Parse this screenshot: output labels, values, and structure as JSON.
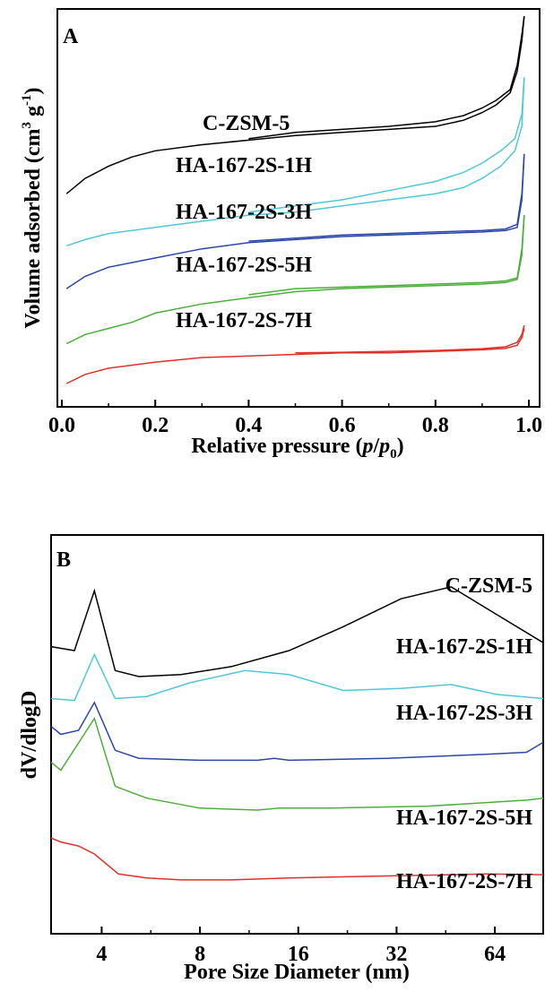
{
  "chart_data": [
    {
      "type": "line",
      "panel_label": "A",
      "xlabel": "Relative pressure (p/p0)",
      "ylabel": "Volume adsorbed (cm3 g-1)",
      "xlim": [
        0,
        1.0
      ],
      "x_ticks": [
        "0.0",
        "0.2",
        "0.4",
        "0.6",
        "0.8",
        "1.0"
      ],
      "y_tick_labels_shown": false,
      "series": [
        {
          "name": "C-ZSM-5",
          "color": "#000000",
          "adsorption": [
            [
              0.01,
              0.62
            ],
            [
              0.05,
              0.67
            ],
            [
              0.1,
              0.71
            ],
            [
              0.15,
              0.74
            ],
            [
              0.2,
              0.76
            ],
            [
              0.3,
              0.78
            ],
            [
              0.4,
              0.795
            ],
            [
              0.5,
              0.81
            ],
            [
              0.6,
              0.82
            ],
            [
              0.7,
              0.83
            ],
            [
              0.8,
              0.84
            ],
            [
              0.86,
              0.86
            ],
            [
              0.9,
              0.885
            ],
            [
              0.93,
              0.91
            ],
            [
              0.96,
              0.95
            ],
            [
              0.975,
              1.02
            ],
            [
              0.985,
              1.12
            ],
            [
              0.99,
              1.2
            ]
          ],
          "desorption": [
            [
              0.4,
              0.8
            ],
            [
              0.5,
              0.82
            ],
            [
              0.6,
              0.83
            ],
            [
              0.7,
              0.84
            ],
            [
              0.8,
              0.855
            ],
            [
              0.86,
              0.875
            ],
            [
              0.9,
              0.9
            ],
            [
              0.93,
              0.925
            ],
            [
              0.96,
              0.96
            ],
            [
              0.975,
              1.04
            ],
            [
              0.985,
              1.14
            ],
            [
              0.99,
              1.2
            ]
          ]
        },
        {
          "name": "HA-167-2S-1H",
          "color": "#4ec8d8",
          "adsorption": [
            [
              0.01,
              0.45
            ],
            [
              0.05,
              0.47
            ],
            [
              0.1,
              0.49
            ],
            [
              0.2,
              0.51
            ],
            [
              0.3,
              0.53
            ],
            [
              0.4,
              0.55
            ],
            [
              0.5,
              0.56
            ],
            [
              0.6,
              0.58
            ],
            [
              0.7,
              0.6
            ],
            [
              0.8,
              0.62
            ],
            [
              0.86,
              0.64
            ],
            [
              0.9,
              0.67
            ],
            [
              0.94,
              0.71
            ],
            [
              0.97,
              0.76
            ],
            [
              0.985,
              0.84
            ],
            [
              0.99,
              1.0
            ]
          ],
          "desorption": [
            [
              0.4,
              0.56
            ],
            [
              0.5,
              0.58
            ],
            [
              0.6,
              0.6
            ],
            [
              0.7,
              0.63
            ],
            [
              0.8,
              0.66
            ],
            [
              0.86,
              0.69
            ],
            [
              0.9,
              0.72
            ],
            [
              0.94,
              0.76
            ],
            [
              0.97,
              0.8
            ],
            [
              0.985,
              0.88
            ],
            [
              0.99,
              1.0
            ]
          ]
        },
        {
          "name": "HA-167-2S-3H",
          "color": "#2a47a8",
          "adsorption": [
            [
              0.01,
              0.31
            ],
            [
              0.05,
              0.35
            ],
            [
              0.1,
              0.38
            ],
            [
              0.2,
              0.41
            ],
            [
              0.3,
              0.44
            ],
            [
              0.4,
              0.46
            ],
            [
              0.5,
              0.47
            ],
            [
              0.6,
              0.48
            ],
            [
              0.7,
              0.485
            ],
            [
              0.8,
              0.49
            ],
            [
              0.9,
              0.495
            ],
            [
              0.95,
              0.5
            ],
            [
              0.975,
              0.51
            ],
            [
              0.985,
              0.6
            ],
            [
              0.99,
              0.75
            ]
          ],
          "desorption": [
            [
              0.4,
              0.465
            ],
            [
              0.5,
              0.475
            ],
            [
              0.6,
              0.485
            ],
            [
              0.7,
              0.49
            ],
            [
              0.8,
              0.495
            ],
            [
              0.9,
              0.5
            ],
            [
              0.95,
              0.505
            ],
            [
              0.975,
              0.52
            ],
            [
              0.985,
              0.62
            ],
            [
              0.99,
              0.75
            ]
          ]
        },
        {
          "name": "HA-167-2S-5H",
          "color": "#4caf3a",
          "adsorption": [
            [
              0.01,
              0.13
            ],
            [
              0.05,
              0.16
            ],
            [
              0.1,
              0.18
            ],
            [
              0.15,
              0.2
            ],
            [
              0.2,
              0.23
            ],
            [
              0.3,
              0.26
            ],
            [
              0.4,
              0.28
            ],
            [
              0.5,
              0.3
            ],
            [
              0.6,
              0.31
            ],
            [
              0.7,
              0.315
            ],
            [
              0.8,
              0.32
            ],
            [
              0.9,
              0.325
            ],
            [
              0.95,
              0.33
            ],
            [
              0.975,
              0.34
            ],
            [
              0.985,
              0.42
            ],
            [
              0.99,
              0.55
            ]
          ],
          "desorption": [
            [
              0.4,
              0.29
            ],
            [
              0.5,
              0.31
            ],
            [
              0.6,
              0.315
            ],
            [
              0.7,
              0.32
            ],
            [
              0.8,
              0.325
            ],
            [
              0.9,
              0.33
            ],
            [
              0.95,
              0.335
            ],
            [
              0.975,
              0.345
            ],
            [
              0.985,
              0.44
            ],
            [
              0.99,
              0.55
            ]
          ]
        },
        {
          "name": "HA-167-2S-7H",
          "color": "#e0302a",
          "adsorption": [
            [
              0.01,
              0.0
            ],
            [
              0.05,
              0.03
            ],
            [
              0.1,
              0.05
            ],
            [
              0.2,
              0.07
            ],
            [
              0.3,
              0.085
            ],
            [
              0.4,
              0.09
            ],
            [
              0.5,
              0.095
            ],
            [
              0.6,
              0.1
            ],
            [
              0.7,
              0.1
            ],
            [
              0.8,
              0.105
            ],
            [
              0.9,
              0.11
            ],
            [
              0.95,
              0.115
            ],
            [
              0.975,
              0.125
            ],
            [
              0.985,
              0.15
            ],
            [
              0.99,
              0.18
            ]
          ],
          "desorption": [
            [
              0.5,
              0.1
            ],
            [
              0.6,
              0.102
            ],
            [
              0.7,
              0.105
            ],
            [
              0.8,
              0.108
            ],
            [
              0.9,
              0.114
            ],
            [
              0.95,
              0.12
            ],
            [
              0.975,
              0.135
            ],
            [
              0.985,
              0.16
            ],
            [
              0.99,
              0.19
            ]
          ]
        }
      ]
    },
    {
      "type": "line",
      "panel_label": "B",
      "xlabel": "Pore Size Diameter (nm)",
      "ylabel": "dV/dlogD",
      "x_scale": "log2",
      "xlim": [
        2.8,
        90
      ],
      "x_ticks": [
        "4",
        "8",
        "16",
        "32",
        "64"
      ],
      "y_tick_labels_shown": false,
      "series": [
        {
          "name": "C-ZSM-5",
          "color": "#000000",
          "points": [
            [
              2.8,
              0.72
            ],
            [
              3.3,
              0.71
            ],
            [
              3.8,
              0.86
            ],
            [
              4.4,
              0.66
            ],
            [
              5.2,
              0.645
            ],
            [
              7,
              0.65
            ],
            [
              10,
              0.67
            ],
            [
              15,
              0.71
            ],
            [
              22,
              0.77
            ],
            [
              33,
              0.84
            ],
            [
              47,
              0.87
            ],
            [
              65,
              0.8
            ],
            [
              90,
              0.73
            ]
          ]
        },
        {
          "name": "HA-167-2S-1H",
          "color": "#4ec8d8",
          "points": [
            [
              2.8,
              0.59
            ],
            [
              3.3,
              0.585
            ],
            [
              3.8,
              0.7
            ],
            [
              4.4,
              0.59
            ],
            [
              5.5,
              0.595
            ],
            [
              7.5,
              0.63
            ],
            [
              11,
              0.66
            ],
            [
              15,
              0.65
            ],
            [
              22,
              0.61
            ],
            [
              33,
              0.615
            ],
            [
              47,
              0.625
            ],
            [
              65,
              0.6
            ],
            [
              90,
              0.59
            ]
          ]
        },
        {
          "name": "HA-167-2S-3H",
          "color": "#2a47a8",
          "points": [
            [
              2.8,
              0.52
            ],
            [
              3.0,
              0.5
            ],
            [
              3.4,
              0.51
            ],
            [
              3.8,
              0.58
            ],
            [
              4.4,
              0.46
            ],
            [
              5.2,
              0.44
            ],
            [
              8,
              0.435
            ],
            [
              12,
              0.435
            ],
            [
              13.5,
              0.44
            ],
            [
              15,
              0.435
            ],
            [
              30,
              0.44
            ],
            [
              60,
              0.45
            ],
            [
              80,
              0.455
            ],
            [
              90,
              0.48
            ]
          ]
        },
        {
          "name": "HA-167-2S-5H",
          "color": "#4caf3a",
          "points": [
            [
              2.8,
              0.43
            ],
            [
              3.0,
              0.41
            ],
            [
              3.8,
              0.54
            ],
            [
              4.4,
              0.37
            ],
            [
              5.5,
              0.34
            ],
            [
              8,
              0.315
            ],
            [
              12,
              0.31
            ],
            [
              14,
              0.315
            ],
            [
              20,
              0.315
            ],
            [
              40,
              0.32
            ],
            [
              80,
              0.335
            ],
            [
              90,
              0.34
            ]
          ]
        },
        {
          "name": "HA-167-2S-7H",
          "color": "#e0302a",
          "points": [
            [
              2.8,
              0.24
            ],
            [
              3.0,
              0.23
            ],
            [
              3.4,
              0.22
            ],
            [
              3.8,
              0.2
            ],
            [
              4.5,
              0.15
            ],
            [
              5.5,
              0.14
            ],
            [
              7,
              0.135
            ],
            [
              10,
              0.135
            ],
            [
              15,
              0.14
            ],
            [
              30,
              0.145
            ],
            [
              60,
              0.15
            ],
            [
              90,
              0.148
            ]
          ]
        }
      ]
    }
  ]
}
